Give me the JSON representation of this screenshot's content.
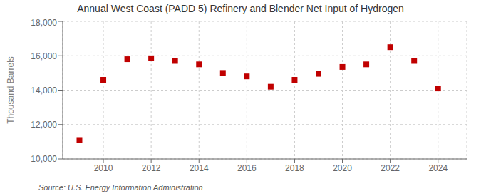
{
  "chart_data": {
    "type": "scatter",
    "title": "Annual West Coast (PADD 5) Refinery and Blender Net Input of Hydrogen",
    "ylabel": "Thousand Barrels",
    "annotation": "Source: U.S. Energy Information Administration",
    "x": [
      2009,
      2010,
      2011,
      2012,
      2013,
      2014,
      2015,
      2016,
      2017,
      2018,
      2019,
      2020,
      2021,
      2022,
      2023,
      2024
    ],
    "values": [
      11100,
      14600,
      15800,
      15850,
      15700,
      15500,
      15000,
      14800,
      14200,
      14600,
      14950,
      15350,
      15500,
      16500,
      15700,
      14100
    ],
    "color": "#c00000",
    "marker": "square",
    "xlim": [
      2008.3,
      2025.2
    ],
    "ylim": [
      10000,
      18000
    ],
    "xticks": [
      2010,
      2012,
      2014,
      2016,
      2018,
      2020,
      2022,
      2024
    ],
    "yticks": [
      {
        "value": 10000,
        "label": "10,000"
      },
      {
        "value": 12000,
        "label": "12,000"
      },
      {
        "value": 14000,
        "label": "14,000"
      },
      {
        "value": 16000,
        "label": "16,000"
      },
      {
        "value": 18000,
        "label": "18,000"
      }
    ],
    "grid": true
  }
}
